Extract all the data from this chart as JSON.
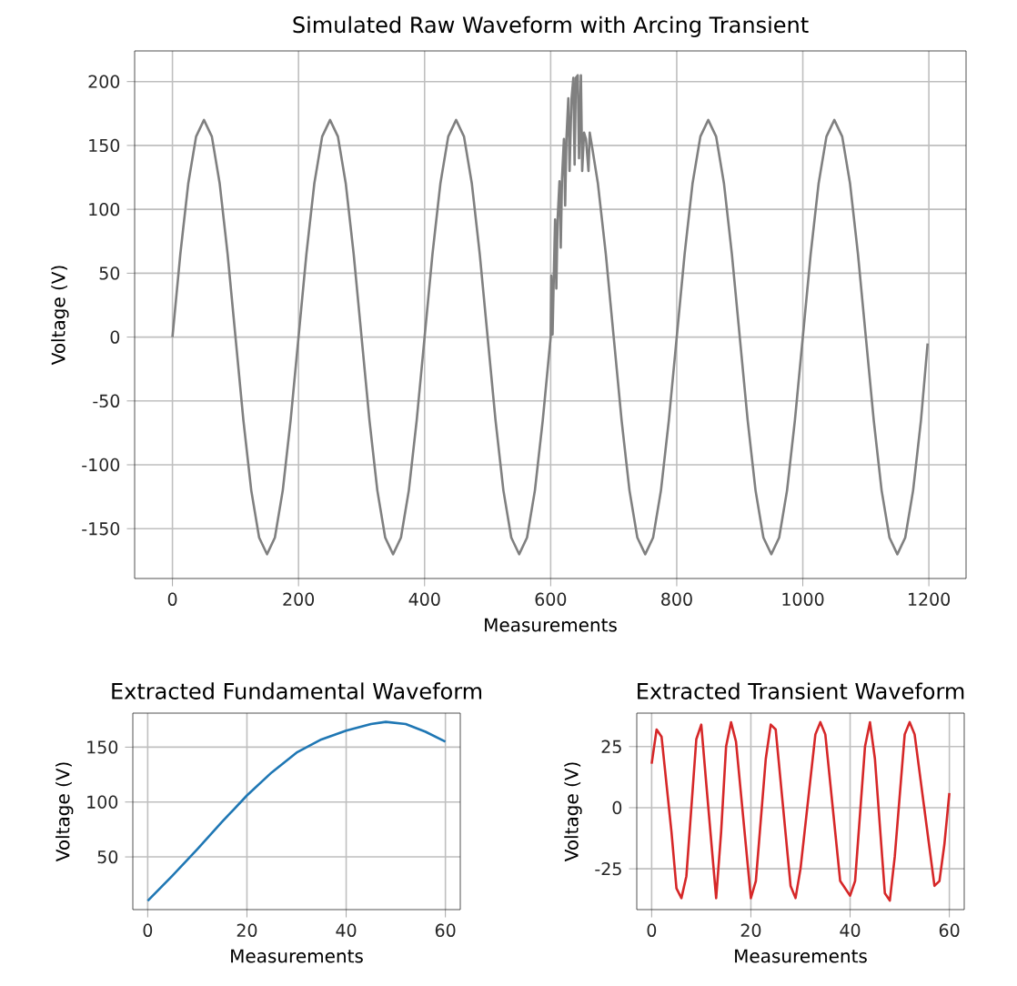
{
  "chart_data": [
    {
      "type": "line",
      "title": "Simulated Raw Waveform with Arcing Transient",
      "xlabel": "Measurements",
      "ylabel": "Voltage (V)",
      "xlim": [
        -60,
        1259
      ],
      "ylim": [
        -189,
        224
      ],
      "xticks": [
        0,
        200,
        400,
        600,
        800,
        1000,
        1200
      ],
      "yticks": [
        -150,
        -100,
        -50,
        0,
        50,
        100,
        150,
        200
      ],
      "grid": true,
      "series": [
        {
          "color": "#808080",
          "x": [
            0,
            12.5,
            25,
            37.5,
            50,
            62.5,
            75,
            87.5,
            100,
            112.5,
            125,
            137.5,
            150,
            162.5,
            175,
            187.5,
            200,
            212.5,
            225,
            237.5,
            250,
            262.5,
            275,
            287.5,
            300,
            312.5,
            325,
            337.5,
            350,
            362.5,
            375,
            387.5,
            400,
            412.5,
            425,
            437.5,
            450,
            462.5,
            475,
            487.5,
            500,
            512.5,
            525,
            537.5,
            550,
            562.5,
            575,
            587.5,
            600,
            601,
            603,
            605,
            607,
            609,
            611,
            614,
            616,
            618,
            621,
            623,
            625,
            628,
            630,
            633,
            636,
            638,
            640,
            643,
            645,
            648,
            650,
            653,
            656,
            660,
            662,
            665,
            675,
            687.5,
            700,
            712.5,
            725,
            737.5,
            750,
            762.5,
            775,
            787.5,
            800,
            812.5,
            825,
            837.5,
            850,
            862.5,
            875,
            887.5,
            900,
            912.5,
            925,
            937.5,
            950,
            962.5,
            975,
            987.5,
            1000,
            1012.5,
            1025,
            1037.5,
            1050,
            1062.5,
            1075,
            1087.5,
            1100,
            1112.5,
            1125,
            1137.5,
            1150,
            1162.5,
            1175,
            1187.5,
            1198
          ],
          "values": [
            0,
            65,
            120,
            157,
            170,
            157,
            120,
            65,
            0,
            -65,
            -120,
            -157,
            -170,
            -157,
            -120,
            -65,
            0,
            65,
            120,
            157,
            170,
            157,
            120,
            65,
            0,
            -65,
            -120,
            -157,
            -170,
            -157,
            -120,
            -65,
            0,
            65,
            120,
            157,
            170,
            157,
            120,
            65,
            0,
            -65,
            -120,
            -157,
            -170,
            -157,
            -120,
            -65,
            0,
            48,
            2,
            48,
            92,
            38,
            92,
            122,
            70,
            124,
            155,
            103,
            155,
            187,
            130,
            186,
            203,
            135,
            203,
            205,
            140,
            205,
            130,
            160,
            155,
            130,
            160,
            151,
            120,
            65,
            0,
            -65,
            -120,
            -157,
            -170,
            -157,
            -120,
            -65,
            0,
            65,
            120,
            157,
            170,
            157,
            120,
            65,
            0,
            -65,
            -120,
            -157,
            -170,
            -157,
            -120,
            -65,
            0,
            65,
            120,
            157,
            170,
            157,
            120,
            65,
            0,
            -65,
            -120,
            -157,
            -170,
            -157,
            -120,
            -65,
            -5
          ]
        }
      ]
    },
    {
      "type": "line",
      "title": "Extracted Fundamental Waveform",
      "xlabel": "Measurements",
      "ylabel": "Voltage (V)",
      "xlim": [
        -3,
        63
      ],
      "ylim": [
        2,
        181
      ],
      "xticks": [
        0,
        20,
        40,
        60
      ],
      "yticks": [
        50,
        100,
        150
      ],
      "grid": true,
      "series": [
        {
          "color": "#1f77b4",
          "x": [
            0,
            5,
            10,
            15,
            20,
            25,
            30,
            35,
            40,
            45,
            48,
            52,
            56,
            60
          ],
          "values": [
            10,
            33,
            57,
            82,
            106,
            127,
            145,
            157,
            165,
            171,
            173,
            171,
            164,
            155
          ]
        }
      ]
    },
    {
      "type": "line",
      "title": "Extracted Transient Waveform",
      "xlabel": "Measurements",
      "ylabel": "Voltage (V)",
      "xlim": [
        -3,
        63
      ],
      "ylim": [
        -41.7,
        38.7
      ],
      "xticks": [
        0,
        20,
        40,
        60
      ],
      "yticks": [
        -25,
        0,
        25
      ],
      "grid": true,
      "series": [
        {
          "color": "#d62728",
          "x": [
            0,
            1,
            2,
            4,
            5,
            6,
            7,
            9,
            10,
            11,
            13,
            14,
            15,
            16,
            17,
            20,
            21,
            23,
            24,
            25,
            28,
            29,
            30,
            33,
            34,
            35,
            38,
            40,
            41,
            43,
            44,
            45,
            47,
            48,
            49,
            51,
            52,
            53,
            57,
            58,
            59,
            60
          ],
          "values": [
            18,
            32,
            29,
            -10,
            -33,
            -37,
            -28,
            28,
            34,
            10,
            -37,
            -10,
            25,
            35,
            27,
            -37,
            -30,
            20,
            34,
            32,
            -32,
            -37,
            -25,
            30,
            35,
            30,
            -30,
            -36,
            -30,
            25,
            35,
            20,
            -35,
            -38,
            -20,
            30,
            35,
            30,
            -32,
            -30,
            -15,
            6
          ]
        }
      ]
    }
  ]
}
